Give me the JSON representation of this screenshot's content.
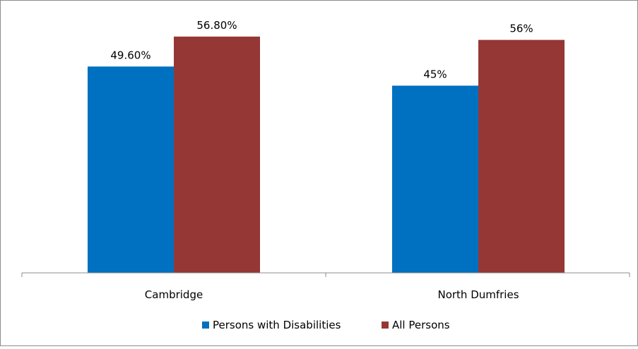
{
  "colors": {
    "persons_with_disabilities": "#0070C0",
    "all_persons": "#953735",
    "axis": "#8c8c8c",
    "text": "#000000"
  },
  "chart_data": {
    "type": "bar",
    "categories": [
      "Cambridge",
      "North Dumfries"
    ],
    "series": [
      {
        "name": "Persons with Disabilities",
        "values": [
          49.6,
          45
        ],
        "labels": [
          "49.60%",
          "45%"
        ]
      },
      {
        "name": "All Persons",
        "values": [
          56.8,
          56
        ],
        "labels": [
          "56.80%",
          "56%"
        ]
      }
    ],
    "title": "",
    "xlabel": "",
    "ylabel": "",
    "ylim": [
      0,
      60
    ],
    "grid": false,
    "legend": "bottom"
  }
}
